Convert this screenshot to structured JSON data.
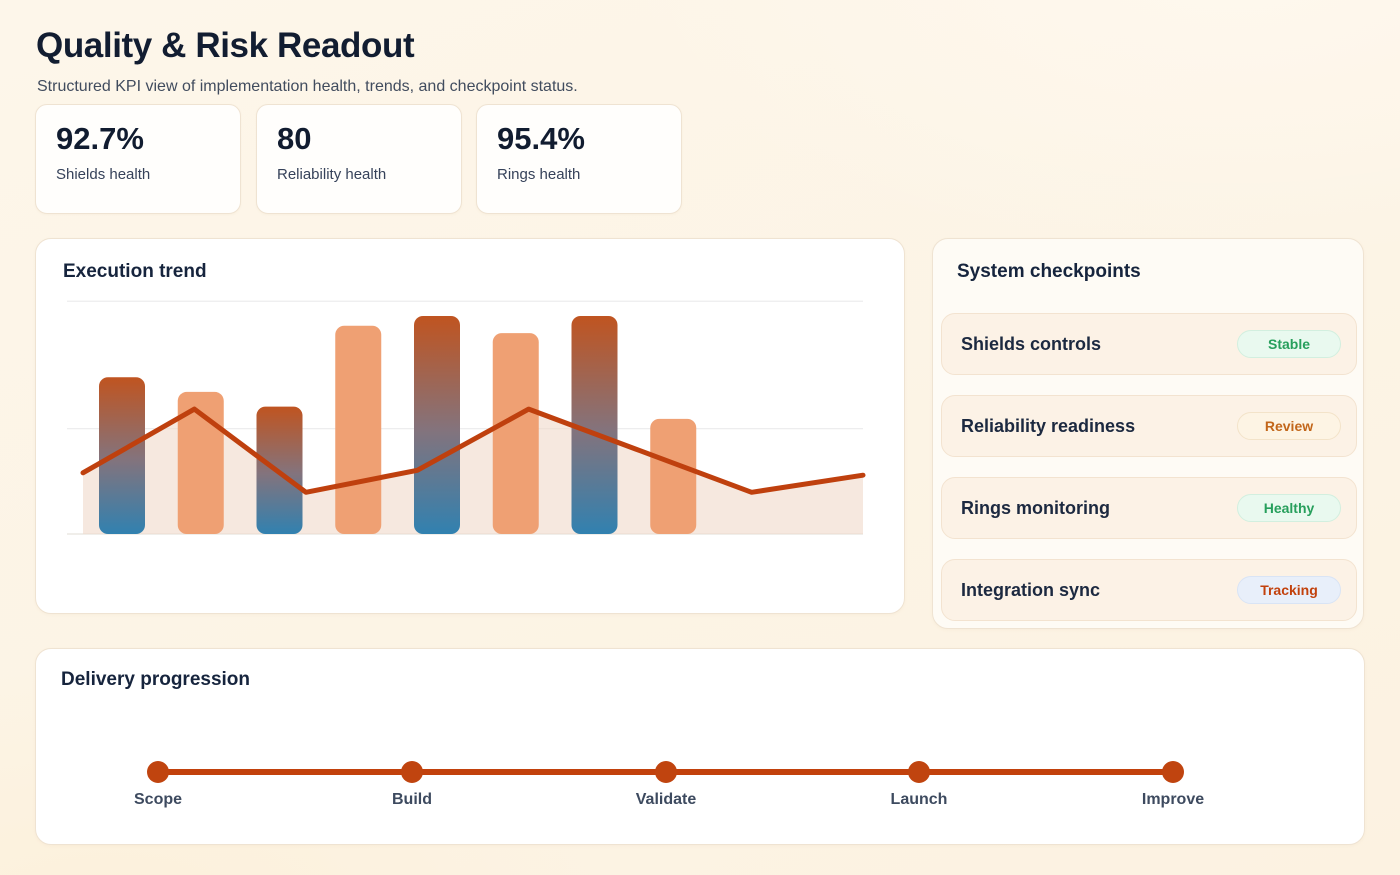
{
  "page": {
    "title": "Quality & Risk Readout",
    "subtitle": "Structured KPI view of implementation health, trends, and checkpoint status."
  },
  "kpis": [
    {
      "value": "92.7%",
      "label": "Shields health"
    },
    {
      "value": "80",
      "label": "Reliability health"
    },
    {
      "value": "95.4%",
      "label": "Rings health"
    }
  ],
  "checkpoints": {
    "title": "System checkpoints",
    "items": [
      {
        "label": "Shields controls",
        "status": "Stable",
        "tone": "green"
      },
      {
        "label": "Reliability readiness",
        "status": "Review",
        "tone": "amber"
      },
      {
        "label": "Rings monitoring",
        "status": "Healthy",
        "tone": "green"
      },
      {
        "label": "Integration sync",
        "status": "Tracking",
        "tone": "blue"
      }
    ]
  },
  "delivery": {
    "title": "Delivery progression",
    "steps": [
      {
        "label": "Scope"
      },
      {
        "label": "Build"
      },
      {
        "label": "Validate"
      },
      {
        "label": "Launch"
      },
      {
        "label": "Improve"
      }
    ]
  },
  "chart_data": {
    "type": "bar",
    "subtype": "bar-and-line-combo",
    "title": "Execution trend",
    "xlabel": "",
    "ylabel": "",
    "x_tick_labels": "none visible",
    "y_tick_labels": "none visible",
    "ylim_pct": [
      0,
      100
    ],
    "grid": "horizontal, faint",
    "gridlines_pct": [
      95,
      43,
      0
    ],
    "legend": "none",
    "bars": {
      "count": 8,
      "values_pct": [
        64,
        58,
        52,
        85,
        89,
        82,
        89,
        47
      ],
      "styles": [
        "gradient",
        "solid",
        "gradient",
        "solid",
        "gradient",
        "solid",
        "gradient",
        "solid"
      ]
    },
    "line": {
      "name": "trend line with area fill",
      "values_pct": [
        25,
        51,
        17,
        26,
        51,
        34,
        17,
        24
      ],
      "area_fill": true
    },
    "colors": {
      "bar_gradient_top": "#c05420",
      "bar_gradient_mid": "#84737c",
      "bar_gradient_bottom": "#3181b0",
      "bar_solid": "#efa073",
      "line": "#bf400e",
      "area": "#f0d9c9",
      "gridline": "#ededee",
      "baseline": "#e7e3de"
    }
  }
}
